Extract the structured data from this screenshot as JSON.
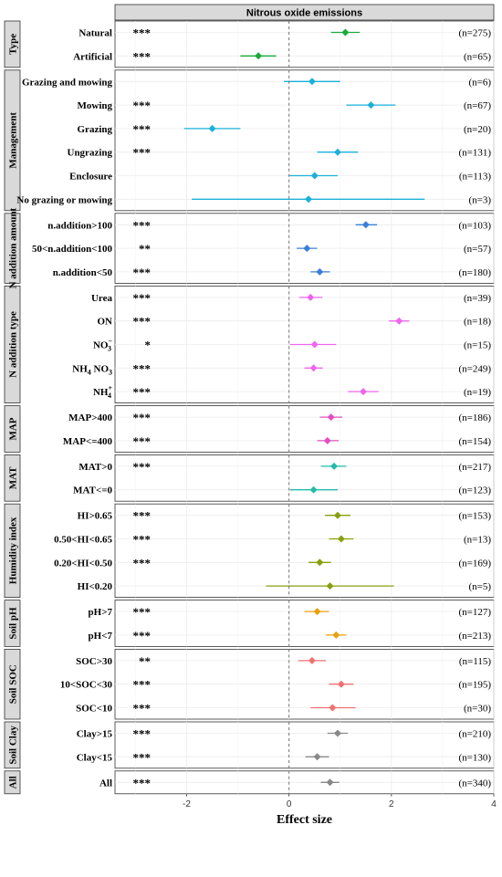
{
  "chart_data": {
    "type": "forest",
    "title": "Nitrous oxide emissions",
    "xlabel": "Effect size",
    "xlim": [
      -3.4,
      4
    ],
    "xticks": [
      -2,
      0,
      2,
      4
    ],
    "xtick_labels": [
      "-2",
      "0",
      "2",
      "4"
    ],
    "reference_line": 0,
    "grid": true,
    "groups": [
      {
        "name": "Type",
        "color": "#1aaa3a",
        "rows": [
          {
            "label": "Natural",
            "sig": "***",
            "mean": 1.1,
            "lo": 0.82,
            "hi": 1.38,
            "n": "(n=275)"
          },
          {
            "label": "Artificial",
            "sig": "***",
            "mean": -0.6,
            "lo": -0.95,
            "hi": -0.25,
            "n": "(n=65)"
          }
        ]
      },
      {
        "name": "Management",
        "color": "#1ab0d8",
        "rows": [
          {
            "label": "Grazing and mowing",
            "sig": "",
            "mean": 0.45,
            "lo": -0.1,
            "hi": 1.0,
            "n": "(n=6)"
          },
          {
            "label": "Mowing",
            "sig": "***",
            "mean": 1.6,
            "lo": 1.12,
            "hi": 2.08,
            "n": "(n=67)"
          },
          {
            "label": "Grazing",
            "sig": "***",
            "mean": -1.5,
            "lo": -2.05,
            "hi": -0.95,
            "n": "(n=20)"
          },
          {
            "label": "Ungrazing",
            "sig": "***",
            "mean": 0.95,
            "lo": 0.55,
            "hi": 1.35,
            "n": "(n=131)"
          },
          {
            "label": "Enclosure",
            "sig": "",
            "mean": 0.5,
            "lo": 0.0,
            "hi": 0.95,
            "n": "(n=113)"
          },
          {
            "label": "No grazing or mowing",
            "sig": "",
            "mean": 0.38,
            "lo": -1.9,
            "hi": 2.65,
            "n": "(n=3)"
          }
        ]
      },
      {
        "name": "N addition amount",
        "color": "#3a7fd8",
        "rows": [
          {
            "label": "n.addition>100",
            "sig": "***",
            "mean": 1.5,
            "lo": 1.3,
            "hi": 1.72,
            "n": "(n=103)"
          },
          {
            "label": "50<n.addition<100",
            "sig": "**",
            "mean": 0.35,
            "lo": 0.15,
            "hi": 0.55,
            "n": "(n=57)"
          },
          {
            "label": "n.addition<50",
            "sig": "***",
            "mean": 0.6,
            "lo": 0.42,
            "hi": 0.8,
            "n": "(n=180)"
          }
        ]
      },
      {
        "name": "N addition type",
        "color": "#ee66ee",
        "rows": [
          {
            "label": "Urea",
            "sig": "***",
            "mean": 0.42,
            "lo": 0.2,
            "hi": 0.65,
            "n": "(n=39)"
          },
          {
            "label": "ON",
            "sig": "***",
            "mean": 2.15,
            "lo": 1.95,
            "hi": 2.35,
            "n": "(n=18)"
          },
          {
            "label": "NO",
            "label_sup": "−",
            "label_sub": "3",
            "sig": "*",
            "mean": 0.5,
            "lo": 0.02,
            "hi": 0.92,
            "n": "(n=15)"
          },
          {
            "label": "NH",
            "label_sub": "4",
            "label_tail": " NO",
            "tail_sub": "3",
            "sig": "***",
            "mean": 0.48,
            "lo": 0.3,
            "hi": 0.66,
            "n": "(n=249)"
          },
          {
            "label": "NH",
            "label_sup": "+",
            "label_sub": "4",
            "sig": "***",
            "mean": 1.45,
            "lo": 1.15,
            "hi": 1.75,
            "n": "(n=19)"
          }
        ]
      },
      {
        "name": "MAP",
        "color": "#e050c0",
        "rows": [
          {
            "label": "MAP>400",
            "sig": "***",
            "mean": 0.82,
            "lo": 0.6,
            "hi": 1.04,
            "n": "(n=186)"
          },
          {
            "label": "MAP<=400",
            "sig": "***",
            "mean": 0.75,
            "lo": 0.55,
            "hi": 0.97,
            "n": "(n=154)"
          }
        ]
      },
      {
        "name": "MAT",
        "color": "#22bbaa",
        "rows": [
          {
            "label": "MAT>0",
            "sig": "***",
            "mean": 0.88,
            "lo": 0.62,
            "hi": 1.12,
            "n": "(n=217)"
          },
          {
            "label": "MAT<=0",
            "sig": "",
            "mean": 0.48,
            "lo": 0.02,
            "hi": 0.95,
            "n": "(n=123)"
          }
        ]
      },
      {
        "name": "Humidity index",
        "color": "#88a010",
        "rows": [
          {
            "label": "HI>0.65",
            "sig": "***",
            "mean": 0.95,
            "lo": 0.7,
            "hi": 1.2,
            "n": "(n=153)"
          },
          {
            "label": "0.50<HI<0.65",
            "sig": "***",
            "mean": 1.02,
            "lo": 0.78,
            "hi": 1.26,
            "n": "(n=13)"
          },
          {
            "label": "0.20<HI<0.50",
            "sig": "***",
            "mean": 0.6,
            "lo": 0.38,
            "hi": 0.82,
            "n": "(n=169)"
          },
          {
            "label": "HI<0.20",
            "sig": "",
            "mean": 0.8,
            "lo": -0.45,
            "hi": 2.05,
            "n": "(n=5)"
          }
        ]
      },
      {
        "name": "Soil pH",
        "color": "#e8a010",
        "rows": [
          {
            "label": "pH>7",
            "sig": "***",
            "mean": 0.55,
            "lo": 0.3,
            "hi": 0.78,
            "n": "(n=127)"
          },
          {
            "label": "pH<7",
            "sig": "***",
            "mean": 0.92,
            "lo": 0.72,
            "hi": 1.12,
            "n": "(n=213)"
          }
        ]
      },
      {
        "name": "Soil SOC",
        "color": "#f07070",
        "rows": [
          {
            "label": "SOC>30",
            "sig": "**",
            "mean": 0.45,
            "lo": 0.18,
            "hi": 0.72,
            "n": "(n=115)"
          },
          {
            "label": "10<SOC<30",
            "sig": "***",
            "mean": 1.02,
            "lo": 0.78,
            "hi": 1.26,
            "n": "(n=195)"
          },
          {
            "label": "SOC<10",
            "sig": "***",
            "mean": 0.85,
            "lo": 0.42,
            "hi": 1.3,
            "n": "(n=30)"
          }
        ]
      },
      {
        "name": "Soil Clay",
        "color": "#888888",
        "rows": [
          {
            "label": "Clay>15",
            "sig": "***",
            "mean": 0.95,
            "lo": 0.75,
            "hi": 1.15,
            "n": "(n=210)"
          },
          {
            "label": "Clay<15",
            "sig": "***",
            "mean": 0.55,
            "lo": 0.32,
            "hi": 0.78,
            "n": "(n=130)"
          }
        ]
      },
      {
        "name": "All",
        "color": "#888888",
        "rows": [
          {
            "label": "All",
            "sig": "***",
            "mean": 0.8,
            "lo": 0.62,
            "hi": 0.98,
            "n": "(n=340)"
          }
        ]
      }
    ]
  }
}
